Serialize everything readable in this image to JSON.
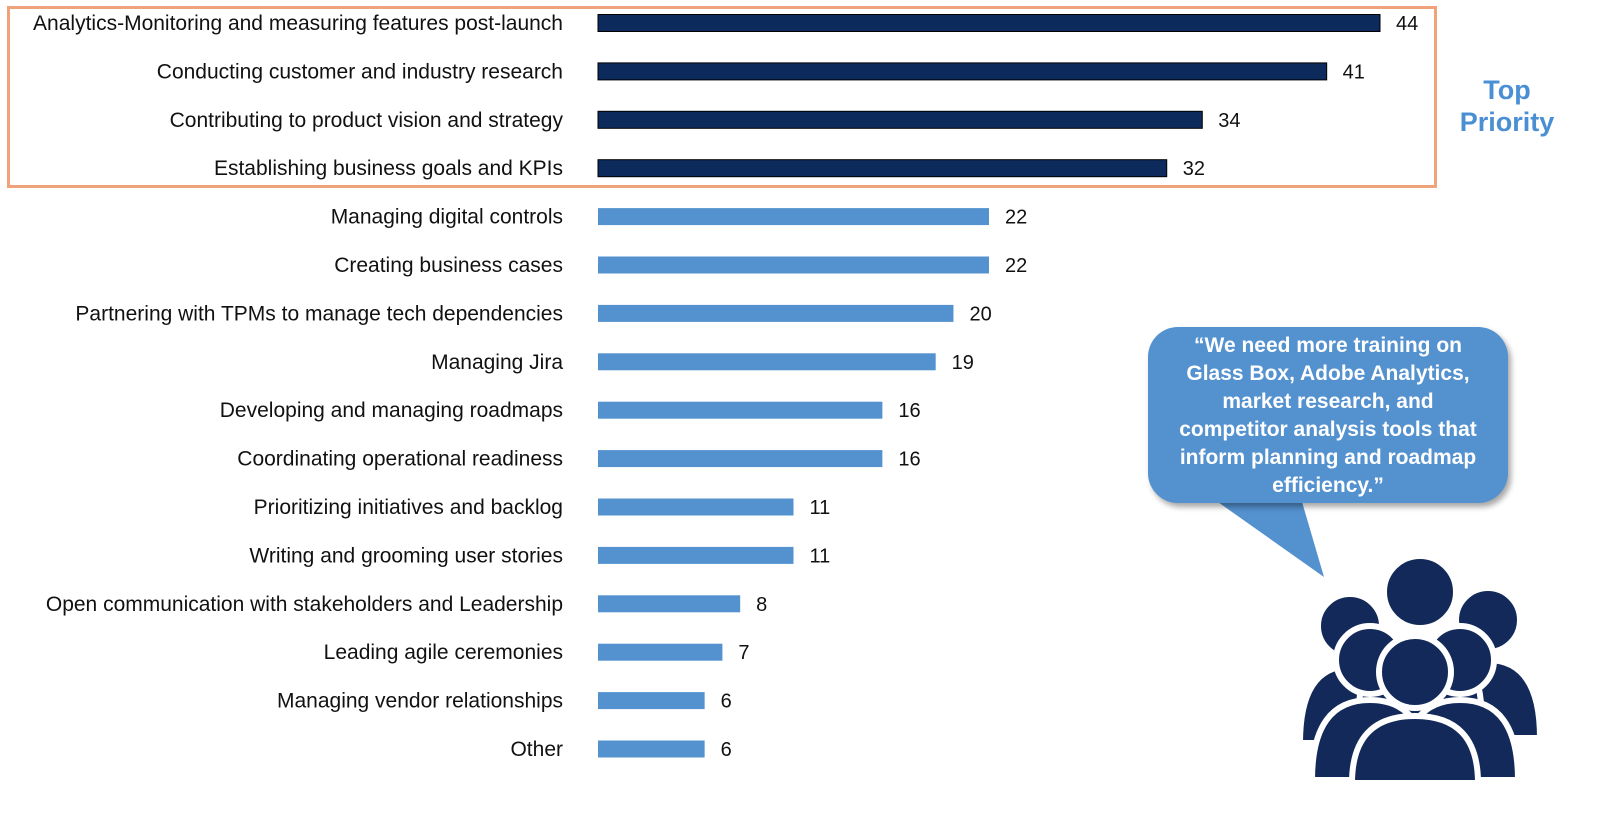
{
  "chart_data": {
    "type": "bar",
    "orientation": "horizontal",
    "categories": [
      "Analytics-Monitoring and measuring features post-launch",
      "Conducting customer and industry research",
      "Contributing to product vision and strategy",
      "Establishing business goals and KPIs",
      "Managing digital controls",
      "Creating business cases",
      "Partnering with TPMs to manage tech dependencies",
      "Managing Jira",
      "Developing and managing roadmaps",
      "Coordinating operational readiness",
      "Prioritizing initiatives and backlog",
      "Writing and grooming user stories",
      "Open communication with stakeholders and Leadership",
      "Leading agile ceremonies",
      "Managing vendor relationships",
      "Other"
    ],
    "values": [
      44,
      41,
      34,
      32,
      22,
      22,
      20,
      19,
      16,
      16,
      11,
      11,
      8,
      7,
      6,
      6
    ],
    "highlight_count": 4,
    "xlim": [
      0,
      44
    ],
    "grid": false,
    "title": "",
    "xlabel": "",
    "ylabel": ""
  },
  "colors": {
    "top_bar": "#0d2a5c",
    "bar": "#5491cf",
    "highlight_box": "#f0a27a",
    "accent_text": "#4a8fd4",
    "icon": "#12295a"
  },
  "annotation": {
    "top_priority": "Top Priority",
    "quote": "“We need more training on Glass Box, Adobe Analytics, market research, and competitor analysis tools that inform planning and roadmap efficiency.”"
  },
  "icon_name": "people-group-icon"
}
